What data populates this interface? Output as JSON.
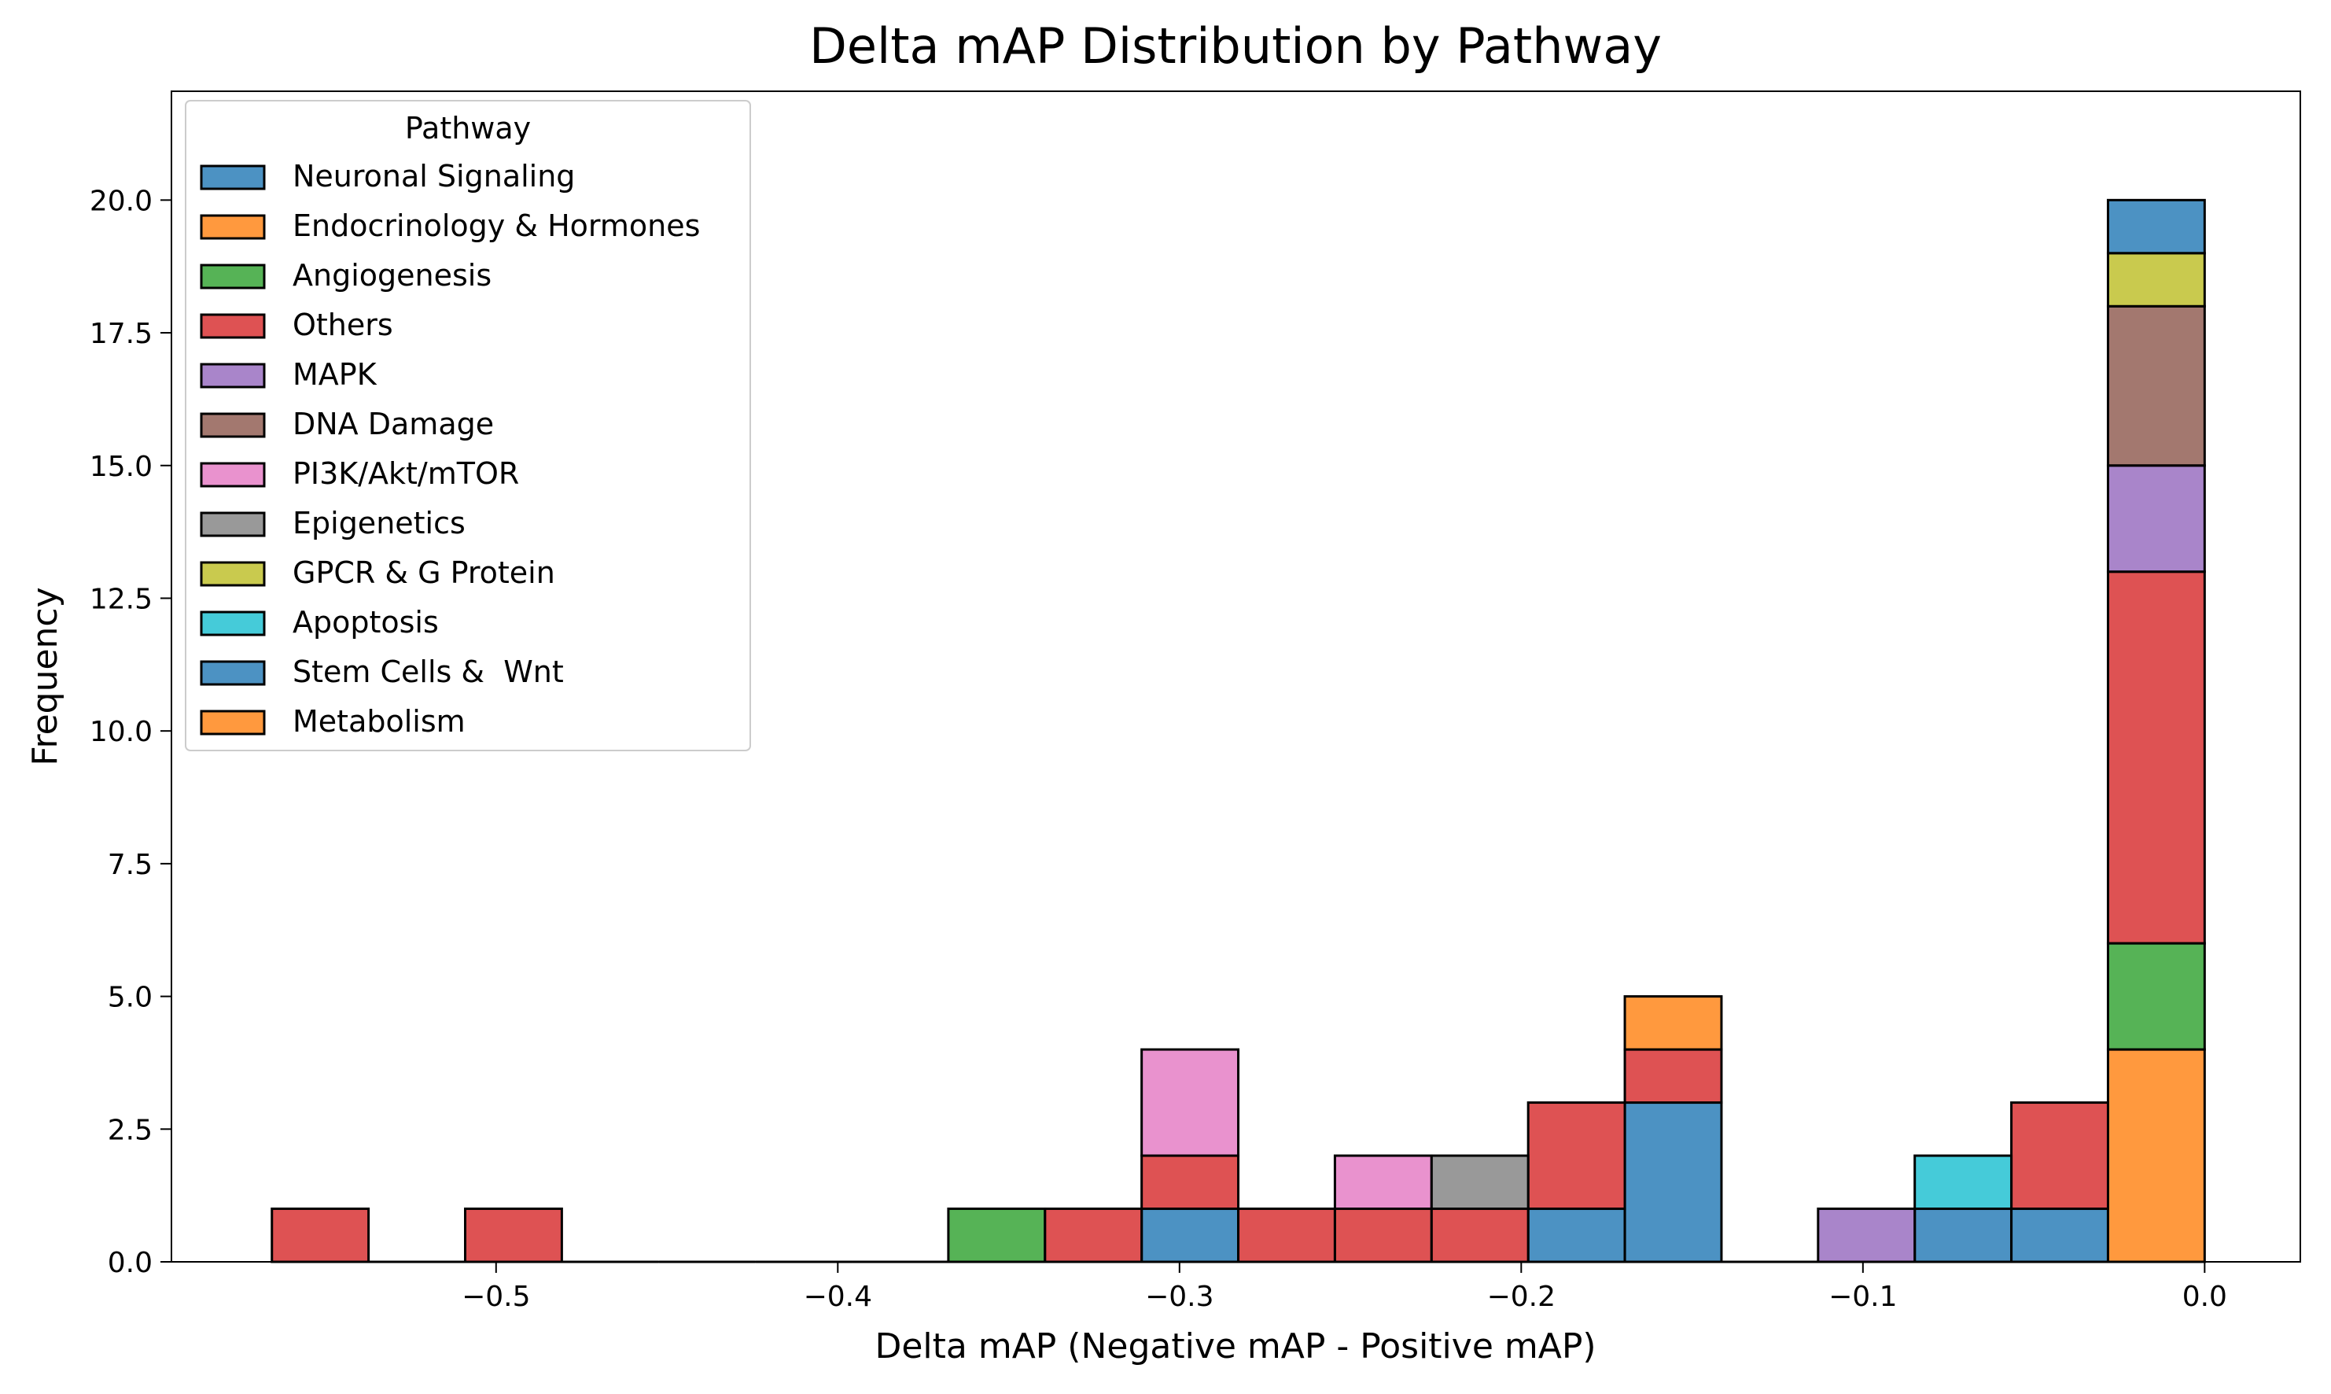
{
  "chart_data": {
    "type": "bar",
    "subtype": "stacked-histogram",
    "title": "Delta mAP Distribution by Pathway",
    "xlabel": "Delta mAP (Negative mAP - Positive mAP)",
    "ylabel": "Frequency",
    "xlim": [
      -0.595,
      0.028
    ],
    "ylim": [
      0,
      22.05
    ],
    "bin_start": -0.5656,
    "bin_width": 0.02828,
    "bin_count": 20,
    "x_ticks": [
      {
        "value": -0.5,
        "label": "−0.5"
      },
      {
        "value": -0.4,
        "label": "−0.4"
      },
      {
        "value": -0.3,
        "label": "−0.3"
      },
      {
        "value": -0.2,
        "label": "−0.2"
      },
      {
        "value": -0.1,
        "label": "−0.1"
      },
      {
        "value": 0.0,
        "label": "0.0"
      }
    ],
    "y_ticks": [
      {
        "value": 0,
        "label": "0.0"
      },
      {
        "value": 2.5,
        "label": "2.5"
      },
      {
        "value": 5,
        "label": "5.0"
      },
      {
        "value": 7.5,
        "label": "7.5"
      },
      {
        "value": 10,
        "label": "10.0"
      },
      {
        "value": 12.5,
        "label": "12.5"
      },
      {
        "value": 15,
        "label": "15.0"
      },
      {
        "value": 17.5,
        "label": "17.5"
      },
      {
        "value": 20,
        "label": "20.0"
      }
    ],
    "grid": false,
    "legend": {
      "title": "Pathway",
      "placement": "top-left"
    },
    "series": [
      {
        "name": "Neuronal Signaling",
        "color": "#1f77b4",
        "counts": [
          0,
          0,
          0,
          0,
          0,
          0,
          0,
          0,
          0,
          1,
          0,
          0,
          0,
          1,
          3,
          0,
          0,
          1,
          1,
          0
        ]
      },
      {
        "name": "Endocrinology & Hormones",
        "color": "#ff7f0e",
        "counts": [
          0,
          0,
          0,
          0,
          0,
          0,
          0,
          0,
          0,
          0,
          0,
          0,
          0,
          0,
          0,
          0,
          0,
          0,
          0,
          4
        ]
      },
      {
        "name": "Angiogenesis",
        "color": "#2ca02c",
        "counts": [
          0,
          0,
          0,
          0,
          0,
          0,
          0,
          1,
          0,
          0,
          0,
          0,
          0,
          0,
          0,
          0,
          0,
          0,
          0,
          2
        ]
      },
      {
        "name": "Others",
        "color": "#d62728",
        "counts": [
          1,
          0,
          1,
          0,
          0,
          0,
          0,
          0,
          1,
          1,
          1,
          1,
          1,
          2,
          1,
          0,
          0,
          0,
          2,
          7
        ]
      },
      {
        "name": "MAPK",
        "color": "#9467bd",
        "counts": [
          0,
          0,
          0,
          0,
          0,
          0,
          0,
          0,
          0,
          0,
          0,
          0,
          0,
          0,
          0,
          0,
          1,
          0,
          0,
          2
        ]
      },
      {
        "name": "DNA Damage",
        "color": "#8c564b",
        "counts": [
          0,
          0,
          0,
          0,
          0,
          0,
          0,
          0,
          0,
          0,
          0,
          0,
          0,
          0,
          0,
          0,
          0,
          0,
          0,
          3
        ]
      },
      {
        "name": "PI3K/Akt/mTOR",
        "color": "#e377c2",
        "counts": [
          0,
          0,
          0,
          0,
          0,
          0,
          0,
          0,
          0,
          2,
          0,
          1,
          0,
          0,
          0,
          0,
          0,
          0,
          0,
          0
        ]
      },
      {
        "name": "Epigenetics",
        "color": "#7f7f7f",
        "counts": [
          0,
          0,
          0,
          0,
          0,
          0,
          0,
          0,
          0,
          0,
          0,
          0,
          1,
          0,
          0,
          0,
          0,
          0,
          0,
          0
        ]
      },
      {
        "name": "GPCR & G Protein",
        "color": "#bcbd22",
        "counts": [
          0,
          0,
          0,
          0,
          0,
          0,
          0,
          0,
          0,
          0,
          0,
          0,
          0,
          0,
          0,
          0,
          0,
          0,
          0,
          1
        ]
      },
      {
        "name": "Apoptosis",
        "color": "#17becf",
        "counts": [
          0,
          0,
          0,
          0,
          0,
          0,
          0,
          0,
          0,
          0,
          0,
          0,
          0,
          0,
          0,
          0,
          0,
          1,
          0,
          0
        ]
      },
      {
        "name": "Stem Cells &  Wnt",
        "color": "#1f77b4",
        "counts": [
          0,
          0,
          0,
          0,
          0,
          0,
          0,
          0,
          0,
          0,
          0,
          0,
          0,
          0,
          0,
          0,
          0,
          0,
          0,
          1
        ]
      },
      {
        "name": "Metabolism",
        "color": "#ff7f0e",
        "counts": [
          0,
          0,
          0,
          0,
          0,
          0,
          0,
          0,
          0,
          0,
          0,
          0,
          0,
          0,
          1,
          0,
          0,
          0,
          0,
          0
        ]
      }
    ]
  }
}
